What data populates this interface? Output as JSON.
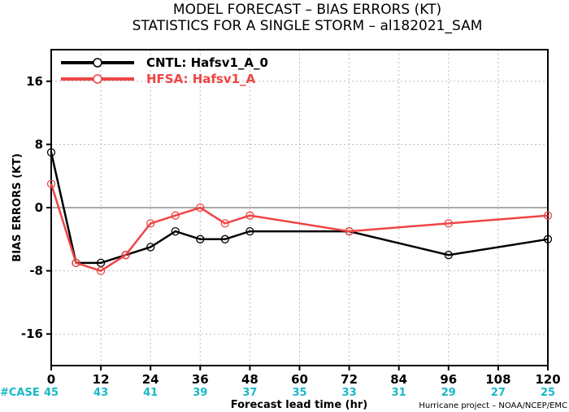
{
  "colors": {
    "cntl": "#000000",
    "hfsa": "#ef4444",
    "case": "#18b8c8",
    "grid": "#bbbbbb"
  },
  "chart_data": {
    "type": "line",
    "title": "MODEL FORECAST – BIAS ERRORS (KT)",
    "subtitle": "STATISTICS FOR A SINGLE STORM – al182021_SAM",
    "xlabel": "Forecast lead time (hr)",
    "ylabel": "BIAS ERRORS (KT)",
    "xlim": [
      0,
      120
    ],
    "ylim": [
      -20,
      20
    ],
    "xticks": [
      0,
      12,
      24,
      36,
      48,
      60,
      72,
      84,
      96,
      108,
      120
    ],
    "yticks": [
      -16,
      -8,
      0,
      8,
      16
    ],
    "grid": true,
    "legend_position": "top-left",
    "case_label": "#CASE",
    "cases": [
      {
        "x": 0,
        "n": "45"
      },
      {
        "x": 12,
        "n": "43"
      },
      {
        "x": 24,
        "n": "41"
      },
      {
        "x": 36,
        "n": "39"
      },
      {
        "x": 48,
        "n": "37"
      },
      {
        "x": 60,
        "n": "35"
      },
      {
        "x": 72,
        "n": "33"
      },
      {
        "x": 84,
        "n": "31"
      },
      {
        "x": 96,
        "n": "29"
      },
      {
        "x": 108,
        "n": "27"
      },
      {
        "x": 120,
        "n": "25"
      }
    ],
    "series": [
      {
        "name": "CNTL: Hafsv1_A_0",
        "color_key": "cntl",
        "points": [
          [
            0,
            7
          ],
          [
            6,
            -7
          ],
          [
            12,
            -7
          ],
          [
            18,
            -6
          ],
          [
            24,
            -5
          ],
          [
            30,
            -3
          ],
          [
            36,
            -4
          ],
          [
            42,
            -4
          ],
          [
            48,
            -3
          ],
          [
            72,
            -3
          ],
          [
            96,
            -6
          ],
          [
            120,
            -4
          ]
        ]
      },
      {
        "name": "HFSA: Hafsv1_A",
        "color_key": "hfsa",
        "points": [
          [
            0,
            3
          ],
          [
            6,
            -7
          ],
          [
            12,
            -8
          ],
          [
            18,
            -6
          ],
          [
            24,
            -2
          ],
          [
            30,
            -1
          ],
          [
            36,
            0
          ],
          [
            42,
            -2
          ],
          [
            48,
            -1
          ],
          [
            72,
            -3
          ],
          [
            96,
            -2
          ],
          [
            120,
            -1
          ]
        ]
      }
    ],
    "credit": "Hurricane project – NOAA/NCEP/EMC"
  }
}
